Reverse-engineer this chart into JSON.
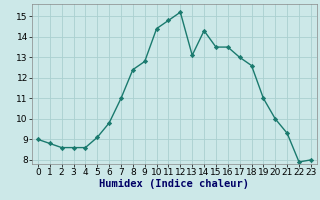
{
  "x": [
    0,
    1,
    2,
    3,
    4,
    5,
    6,
    7,
    8,
    9,
    10,
    11,
    12,
    13,
    14,
    15,
    16,
    17,
    18,
    19,
    20,
    21,
    22,
    23
  ],
  "y": [
    9.0,
    8.8,
    8.6,
    8.6,
    8.6,
    9.1,
    9.8,
    11.0,
    12.4,
    12.8,
    14.4,
    14.8,
    15.2,
    13.1,
    14.3,
    13.5,
    13.5,
    13.0,
    12.6,
    11.0,
    10.0,
    9.3,
    7.9,
    8.0
  ],
  "line_color": "#1a7a6e",
  "marker": "D",
  "markersize": 2.2,
  "linewidth": 1.0,
  "bg_color": "#cce8e8",
  "grid_color": "#aad0d0",
  "xlabel": "Humidex (Indice chaleur)",
  "xlabel_fontsize": 7.5,
  "tick_fontsize": 6.5,
  "ylim": [
    7.8,
    15.6
  ],
  "xlim": [
    -0.5,
    23.5
  ],
  "yticks": [
    8,
    9,
    10,
    11,
    12,
    13,
    14,
    15
  ],
  "xticks": [
    0,
    1,
    2,
    3,
    4,
    5,
    6,
    7,
    8,
    9,
    10,
    11,
    12,
    13,
    14,
    15,
    16,
    17,
    18,
    19,
    20,
    21,
    22,
    23
  ]
}
